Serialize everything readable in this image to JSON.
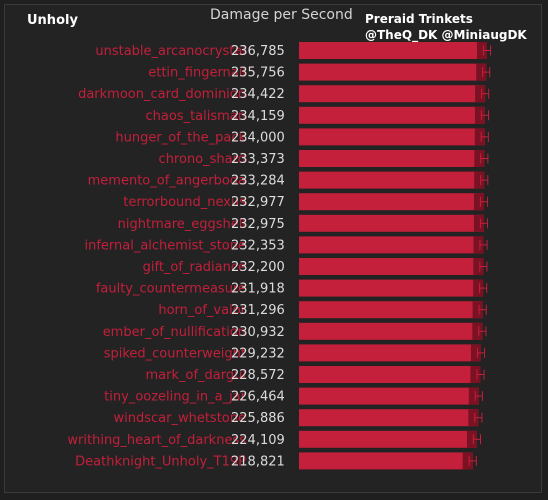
{
  "header": {
    "spec": "Unholy",
    "title": "Damage per Second",
    "subtitle_line1": "Preraid Trinkets",
    "subtitle_line2": "@TheQ_DK @MiniaugDK"
  },
  "colors": {
    "bar": "#c41f3b",
    "bar_dark": "#7a1224",
    "label": "#c41f3b",
    "value": "#dcdcdc",
    "error": "#c41f3b",
    "background": "#232323"
  },
  "chart_data": {
    "type": "bar",
    "orientation": "horizontal",
    "title": "Damage per Second",
    "categories": [
      "unstable_arcanocrystal",
      "ettin_fingernail",
      "darkmoon_card_dominion",
      "chaos_talisman",
      "hunger_of_the_pack",
      "chrono_shard",
      "memento_of_angerboda",
      "terrorbound_nexus",
      "nightmare_eggshell",
      "infernal_alchemist_stone",
      "gift_of_radiance",
      "faulty_countermeasure",
      "horn_of_valor",
      "ember_of_nullification",
      "spiked_counterweight",
      "mark_of_dargul",
      "tiny_oozeling_in_a_jar",
      "windscar_whetstone",
      "writhing_heart_of_darkness",
      "Deathknight_Unholy_T19P"
    ],
    "values": [
      236785,
      235756,
      234422,
      234159,
      234000,
      233373,
      233284,
      232977,
      232975,
      232353,
      232200,
      231918,
      231296,
      230932,
      229232,
      228572,
      226464,
      225886,
      224109,
      218821
    ],
    "value_labels": [
      "236,785",
      "235,756",
      "234,422",
      "234,159",
      "234,000",
      "233,373",
      "233,284",
      "232,977",
      "232,975",
      "232,353",
      "232,200",
      "231,918",
      "231,296",
      "230,932",
      "229,232",
      "228,572",
      "226,464",
      "225,886",
      "224,109",
      "218,821"
    ],
    "xlim": [
      0,
      250000
    ],
    "error_margin": 4500,
    "legend": "none",
    "grid": false
  }
}
